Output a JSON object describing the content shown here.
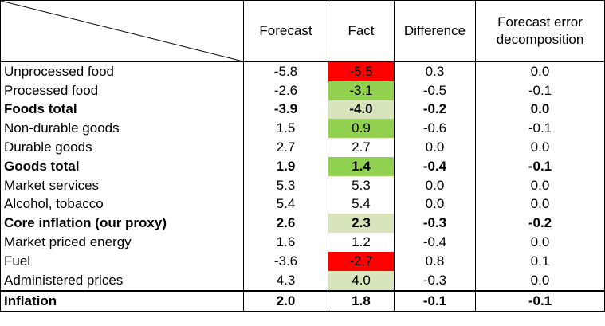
{
  "headers": {
    "forecast": "Forecast",
    "fact": "Fact",
    "difference": "Difference",
    "decomposition_line1": "Forecast error",
    "decomposition_line2": "decomposition"
  },
  "colors": {
    "red": "#ff0000",
    "green": "#92d050",
    "light_green": "#d8e4bc",
    "white": "#ffffff"
  },
  "rows": [
    {
      "label": "Unprocessed food",
      "forecast": "-5.8",
      "fact": "-5.5",
      "difference": "0.3",
      "decomposition": "0.0",
      "bold": false,
      "fact_color": "#ff0000"
    },
    {
      "label": "Processed food",
      "forecast": "-2.6",
      "fact": "-3.1",
      "difference": "-0.5",
      "decomposition": "-0.1",
      "bold": false,
      "fact_color": "#92d050"
    },
    {
      "label": "Foods total",
      "forecast": "-3.9",
      "fact": "-4.0",
      "difference": "-0.2",
      "decomposition": "0.0",
      "bold": true,
      "fact_color": "#d8e4bc"
    },
    {
      "label": "Non-durable goods",
      "forecast": "1.5",
      "fact": "0.9",
      "difference": "-0.6",
      "decomposition": "-0.1",
      "bold": false,
      "fact_color": "#92d050"
    },
    {
      "label": "Durable goods",
      "forecast": "2.7",
      "fact": "2.7",
      "difference": "0.0",
      "decomposition": "0.0",
      "bold": false,
      "fact_color": "#ffffff"
    },
    {
      "label": "Goods total",
      "forecast": "1.9",
      "fact": "1.4",
      "difference": "-0.4",
      "decomposition": "-0.1",
      "bold": true,
      "fact_color": "#92d050"
    },
    {
      "label": "Market services",
      "forecast": "5.3",
      "fact": "5.3",
      "difference": "0.0",
      "decomposition": "0.0",
      "bold": false,
      "fact_color": "#ffffff"
    },
    {
      "label": "Alcohol, tobacco",
      "forecast": "5.4",
      "fact": "5.4",
      "difference": "0.0",
      "decomposition": "0.0",
      "bold": false,
      "fact_color": "#ffffff"
    },
    {
      "label": "Core inflation (our proxy)",
      "forecast": "2.6",
      "fact": "2.3",
      "difference": "-0.3",
      "decomposition": "-0.2",
      "bold": true,
      "fact_color": "#d8e4bc"
    },
    {
      "label": "Market priced energy",
      "forecast": "1.6",
      "fact": "1.2",
      "difference": "-0.4",
      "decomposition": "0.0",
      "bold": false,
      "fact_color": "#ffffff"
    },
    {
      "label": "Fuel",
      "forecast": "-3.6",
      "fact": "-2.7",
      "difference": "0.8",
      "decomposition": "0.1",
      "bold": false,
      "fact_color": "#ff0000"
    },
    {
      "label": "Administered prices",
      "forecast": "4.3",
      "fact": "4.0",
      "difference": "-0.3",
      "decomposition": "0.0",
      "bold": false,
      "fact_color": "#d8e4bc"
    }
  ],
  "total": {
    "label": "Inflation",
    "forecast": "2.0",
    "fact": "1.8",
    "difference": "-0.1",
    "decomposition": "-0.1"
  }
}
